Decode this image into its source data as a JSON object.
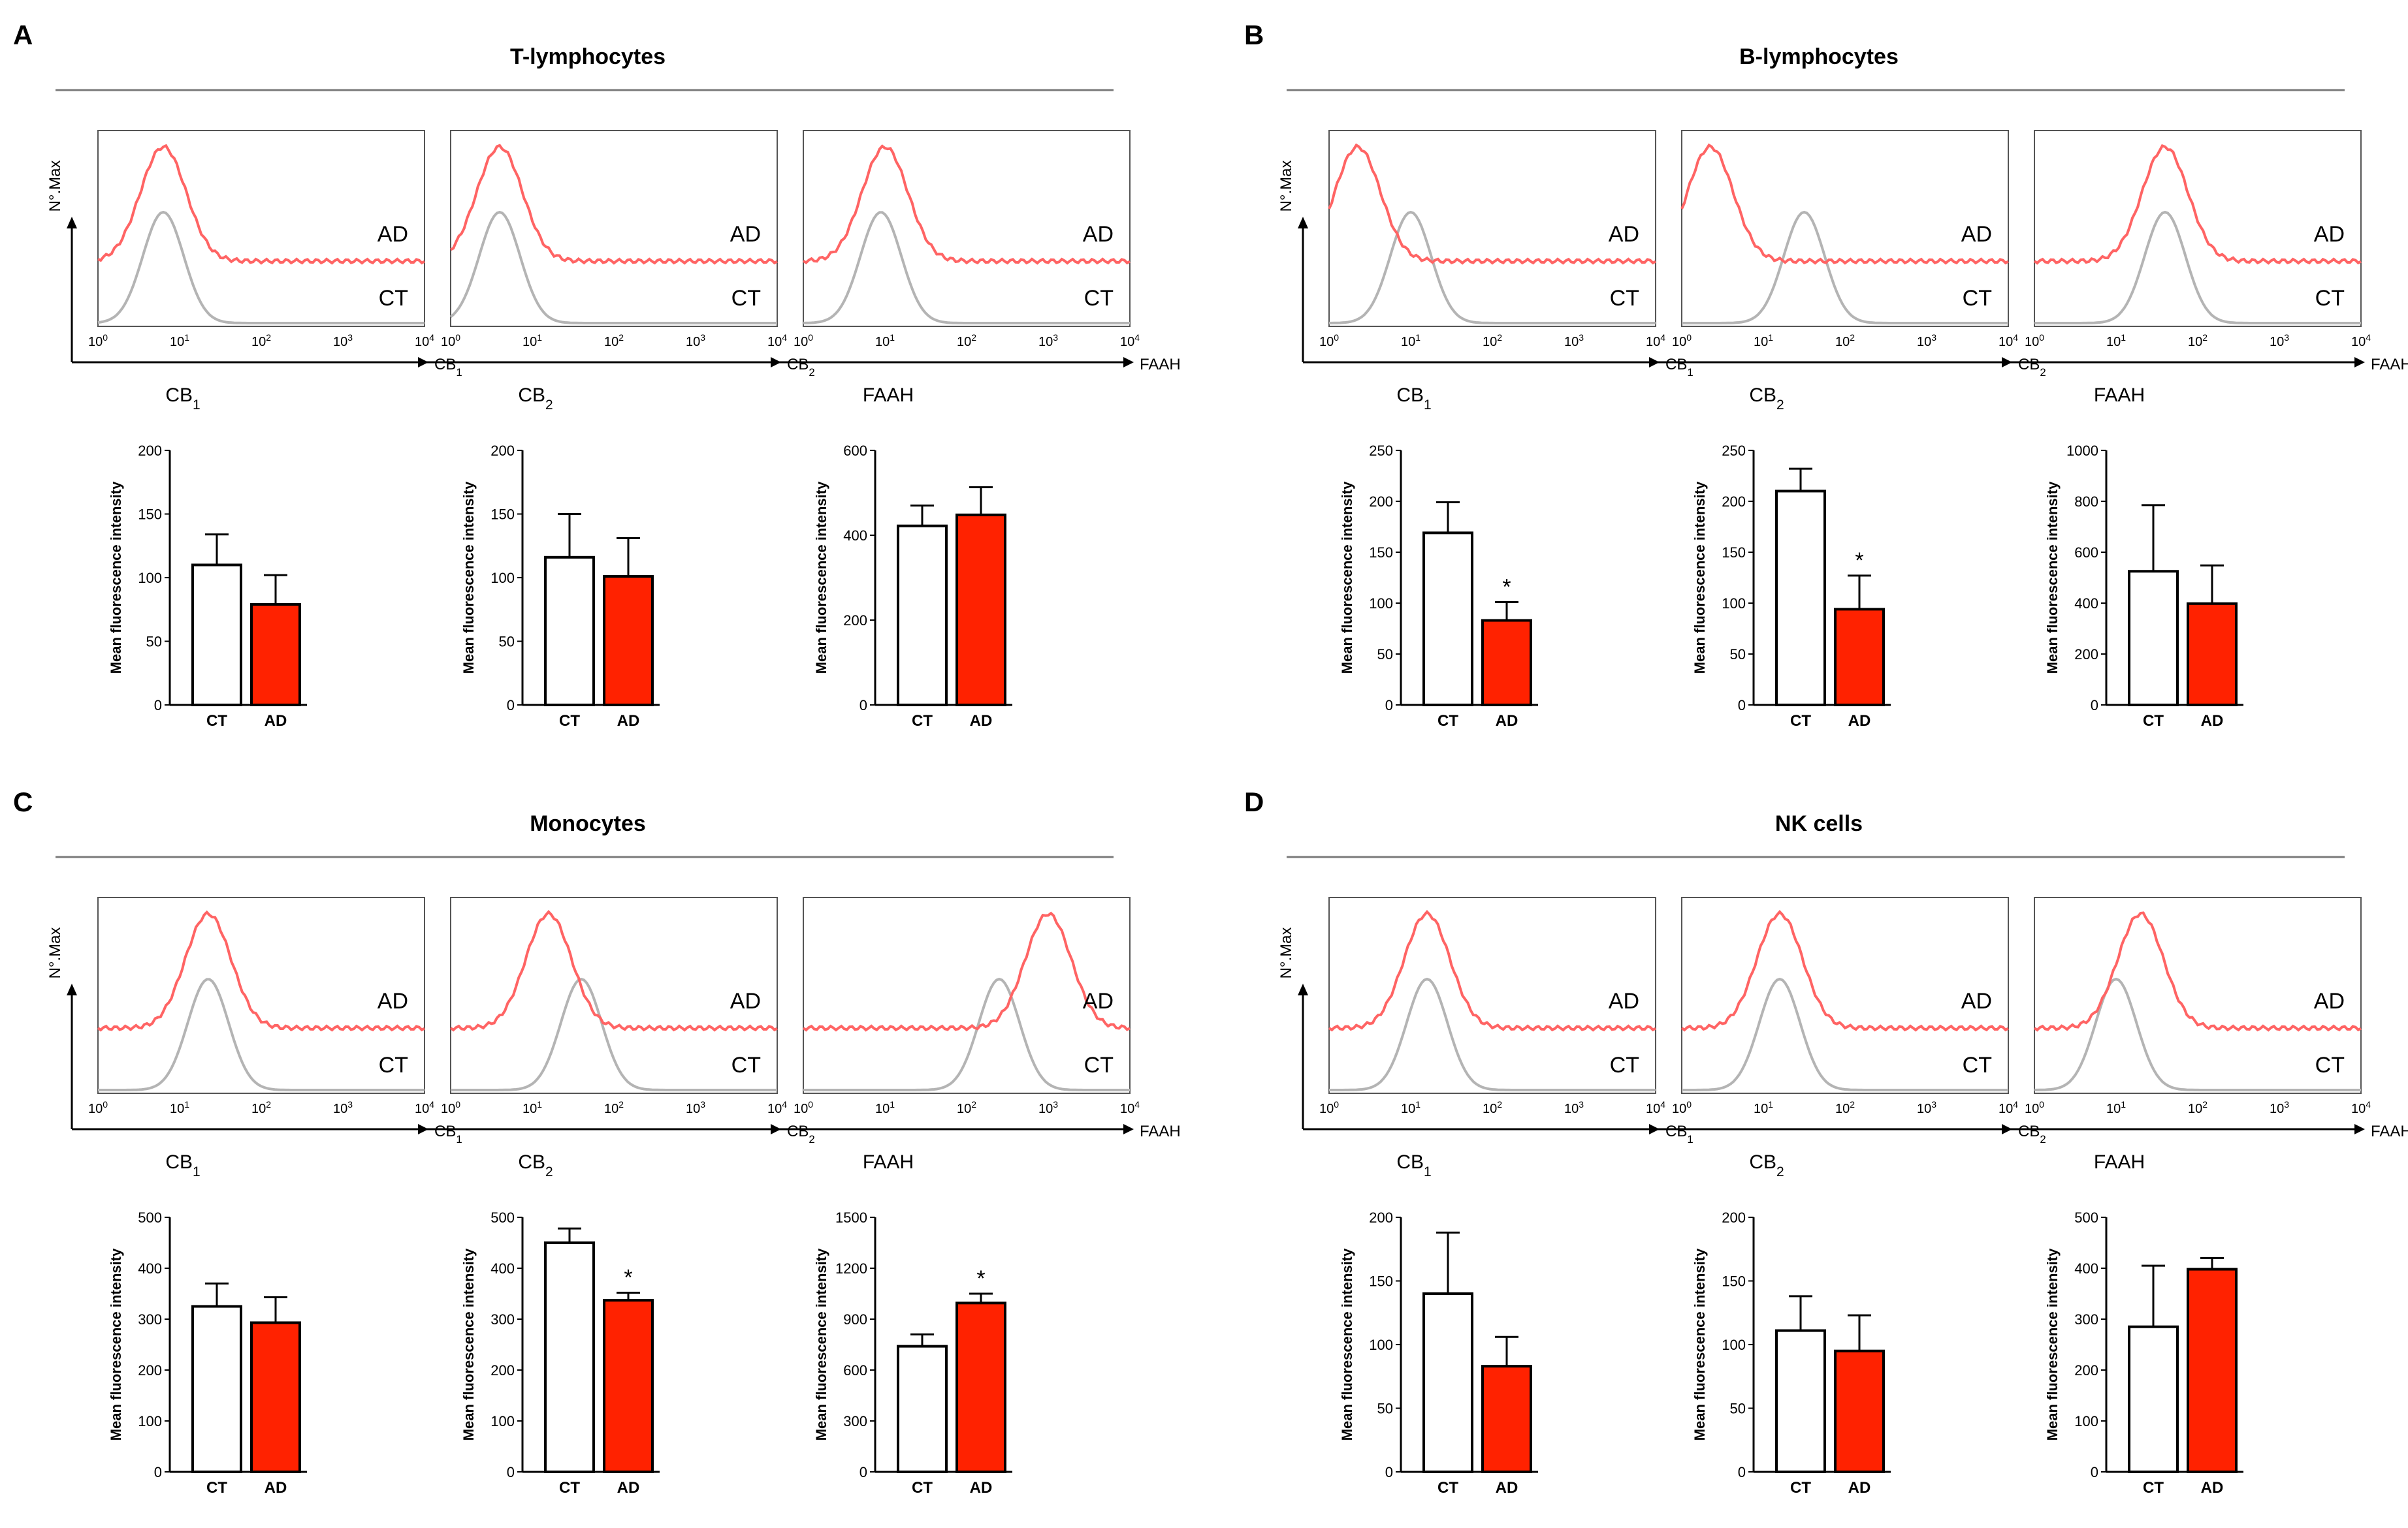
{
  "figure": {
    "colors": {
      "ad": "#ff2200",
      "ad_line": "#ff6464",
      "ct_line": "#b4b4b4",
      "ct_fill": "#ffffff",
      "rule": "#7a7a7a"
    },
    "hist_labels": {
      "ad": "AD",
      "ct": "CT"
    },
    "yaxis_hist_label": "N°.Max",
    "log_ticks": [
      "10",
      "10",
      "10",
      "10",
      "10"
    ],
    "log_exps": [
      "0",
      "1",
      "2",
      "3",
      "4"
    ],
    "bar_ylabel": "Mean fluorescence intensity",
    "categories": [
      "CT",
      "AD"
    ],
    "panels": [
      {
        "letter": "A",
        "title": "T-lymphocytes",
        "histograms": [
          {
            "channel": "CB",
            "sub": "1",
            "ad_peak": 0.8,
            "ct_peak": 0.8
          },
          {
            "channel": "CB",
            "sub": "2",
            "ad_peak": 0.6,
            "ct_peak": 0.6
          },
          {
            "channel": "FAAH",
            "sub": "",
            "ad_peak": 1.0,
            "ct_peak": 0.95
          }
        ],
        "bar_charts": [
          {
            "caption": "CB",
            "sub": "1",
            "ylim": [
              0,
              200
            ],
            "yticks": [
              0,
              50,
              100,
              150,
              200
            ],
            "ct": 110,
            "ct_err": 24,
            "ad": 79,
            "ad_err": 23,
            "sig": ""
          },
          {
            "caption": "CB",
            "sub": "2",
            "ylim": [
              0,
              200
            ],
            "yticks": [
              0,
              50,
              100,
              150,
              200
            ],
            "ct": 116,
            "ct_err": 34,
            "ad": 101,
            "ad_err": 30,
            "sig": ""
          },
          {
            "caption": "FAAH",
            "sub": "",
            "ylim": [
              0,
              600
            ],
            "yticks": [
              0,
              200,
              400,
              600
            ],
            "ct": 422,
            "ct_err": 48,
            "ad": 448,
            "ad_err": 65,
            "sig": ""
          }
        ]
      },
      {
        "letter": "B",
        "title": "B-lymphocytes",
        "histograms": [
          {
            "channel": "CB",
            "sub": "1",
            "ad_peak": 0.35,
            "ct_peak": 1.0
          },
          {
            "channel": "CB",
            "sub": "2",
            "ad_peak": 0.35,
            "ct_peak": 1.5
          },
          {
            "channel": "FAAH",
            "sub": "",
            "ad_peak": 1.6,
            "ct_peak": 1.6
          }
        ],
        "bar_charts": [
          {
            "caption": "CB",
            "sub": "1",
            "ylim": [
              0,
              250
            ],
            "yticks": [
              0,
              50,
              100,
              150,
              200,
              250
            ],
            "ct": 169,
            "ct_err": 30,
            "ad": 83,
            "ad_err": 18,
            "sig": "*"
          },
          {
            "caption": "CB",
            "sub": "2",
            "ylim": [
              0,
              250
            ],
            "yticks": [
              0,
              50,
              100,
              150,
              200,
              250
            ],
            "ct": 210,
            "ct_err": 22,
            "ad": 94,
            "ad_err": 33,
            "sig": "*"
          },
          {
            "caption": "FAAH",
            "sub": "",
            "ylim": [
              0,
              1000
            ],
            "yticks": [
              0,
              200,
              400,
              600,
              800,
              1000
            ],
            "ct": 525,
            "ct_err": 260,
            "ad": 398,
            "ad_err": 150,
            "sig": ""
          }
        ]
      },
      {
        "letter": "C",
        "title": "Monocytes",
        "histograms": [
          {
            "channel": "CB",
            "sub": "1",
            "ad_peak": 1.35,
            "ct_peak": 1.35
          },
          {
            "channel": "CB",
            "sub": "2",
            "ad_peak": 1.2,
            "ct_peak": 1.6
          },
          {
            "channel": "FAAH",
            "sub": "",
            "ad_peak": 3.0,
            "ct_peak": 2.4
          }
        ],
        "bar_charts": [
          {
            "caption": "CB",
            "sub": "1",
            "ylim": [
              0,
              500
            ],
            "yticks": [
              0,
              100,
              200,
              300,
              400,
              500
            ],
            "ct": 325,
            "ct_err": 45,
            "ad": 293,
            "ad_err": 50,
            "sig": ""
          },
          {
            "caption": "CB",
            "sub": "2",
            "ylim": [
              0,
              500
            ],
            "yticks": [
              0,
              100,
              200,
              300,
              400,
              500
            ],
            "ct": 450,
            "ct_err": 28,
            "ad": 337,
            "ad_err": 15,
            "sig": "*"
          },
          {
            "caption": "FAAH",
            "sub": "",
            "ylim": [
              0,
              1500
            ],
            "yticks": [
              0,
              300,
              600,
              900,
              1200,
              1500
            ],
            "ct": 740,
            "ct_err": 70,
            "ad": 995,
            "ad_err": 55,
            "sig": "*"
          }
        ]
      },
      {
        "letter": "D",
        "title": "NK cells",
        "histograms": [
          {
            "channel": "CB",
            "sub": "1",
            "ad_peak": 1.2,
            "ct_peak": 1.2
          },
          {
            "channel": "CB",
            "sub": "2",
            "ad_peak": 1.2,
            "ct_peak": 1.2
          },
          {
            "channel": "FAAH",
            "sub": "",
            "ad_peak": 1.3,
            "ct_peak": 1.0
          }
        ],
        "bar_charts": [
          {
            "caption": "CB",
            "sub": "1",
            "ylim": [
              0,
              200
            ],
            "yticks": [
              0,
              50,
              100,
              150,
              200
            ],
            "ct": 140,
            "ct_err": 48,
            "ad": 83,
            "ad_err": 23,
            "sig": ""
          },
          {
            "caption": "CB",
            "sub": "2",
            "ylim": [
              0,
              200
            ],
            "yticks": [
              0,
              50,
              100,
              150,
              200
            ],
            "ct": 111,
            "ct_err": 27,
            "ad": 95,
            "ad_err": 28,
            "sig": ""
          },
          {
            "caption": "FAAH",
            "sub": "",
            "ylim": [
              0,
              500
            ],
            "yticks": [
              0,
              100,
              200,
              300,
              400,
              500
            ],
            "ct": 285,
            "ct_err": 120,
            "ad": 398,
            "ad_err": 22,
            "sig": ""
          }
        ]
      }
    ]
  },
  "chart_data": [
    {
      "type": "bar",
      "title": "T-lymphocytes CB1",
      "categories": [
        "CT",
        "AD"
      ],
      "values": [
        110,
        79
      ],
      "errors": [
        24,
        23
      ],
      "ylabel": "Mean fluorescence intensity",
      "ylim": [
        0,
        200
      ],
      "significance": [
        "",
        ""
      ]
    },
    {
      "type": "bar",
      "title": "T-lymphocytes CB2",
      "categories": [
        "CT",
        "AD"
      ],
      "values": [
        116,
        101
      ],
      "errors": [
        34,
        30
      ],
      "ylabel": "Mean fluorescence intensity",
      "ylim": [
        0,
        200
      ],
      "significance": [
        "",
        ""
      ]
    },
    {
      "type": "bar",
      "title": "T-lymphocytes FAAH",
      "categories": [
        "CT",
        "AD"
      ],
      "values": [
        422,
        448
      ],
      "errors": [
        48,
        65
      ],
      "ylabel": "Mean fluorescence intensity",
      "ylim": [
        0,
        600
      ],
      "significance": [
        "",
        ""
      ]
    },
    {
      "type": "bar",
      "title": "B-lymphocytes CB1",
      "categories": [
        "CT",
        "AD"
      ],
      "values": [
        169,
        83
      ],
      "errors": [
        30,
        18
      ],
      "ylabel": "Mean fluorescence intensity",
      "ylim": [
        0,
        250
      ],
      "significance": [
        "",
        "*"
      ]
    },
    {
      "type": "bar",
      "title": "B-lymphocytes CB2",
      "categories": [
        "CT",
        "AD"
      ],
      "values": [
        210,
        94
      ],
      "errors": [
        22,
        33
      ],
      "ylabel": "Mean fluorescence intensity",
      "ylim": [
        0,
        250
      ],
      "significance": [
        "",
        "*"
      ]
    },
    {
      "type": "bar",
      "title": "B-lymphocytes FAAH",
      "categories": [
        "CT",
        "AD"
      ],
      "values": [
        525,
        398
      ],
      "errors": [
        260,
        150
      ],
      "ylabel": "Mean fluorescence intensity",
      "ylim": [
        0,
        1000
      ],
      "significance": [
        "",
        ""
      ]
    },
    {
      "type": "bar",
      "title": "Monocytes CB1",
      "categories": [
        "CT",
        "AD"
      ],
      "values": [
        325,
        293
      ],
      "errors": [
        45,
        50
      ],
      "ylabel": "Mean fluorescence intensity",
      "ylim": [
        0,
        500
      ],
      "significance": [
        "",
        ""
      ]
    },
    {
      "type": "bar",
      "title": "Monocytes CB2",
      "categories": [
        "CT",
        "AD"
      ],
      "values": [
        450,
        337
      ],
      "errors": [
        28,
        15
      ],
      "ylabel": "Mean fluorescence intensity",
      "ylim": [
        0,
        500
      ],
      "significance": [
        "",
        "*"
      ]
    },
    {
      "type": "bar",
      "title": "Monocytes FAAH",
      "categories": [
        "CT",
        "AD"
      ],
      "values": [
        740,
        995
      ],
      "errors": [
        70,
        55
      ],
      "ylabel": "Mean fluorescence intensity",
      "ylim": [
        0,
        1500
      ],
      "significance": [
        "",
        "*"
      ]
    },
    {
      "type": "bar",
      "title": "NK cells CB1",
      "categories": [
        "CT",
        "AD"
      ],
      "values": [
        140,
        83
      ],
      "errors": [
        48,
        23
      ],
      "ylabel": "Mean fluorescence intensity",
      "ylim": [
        0,
        200
      ],
      "significance": [
        "",
        ""
      ]
    },
    {
      "type": "bar",
      "title": "NK cells CB2",
      "categories": [
        "CT",
        "AD"
      ],
      "values": [
        111,
        95
      ],
      "errors": [
        27,
        28
      ],
      "ylabel": "Mean fluorescence intensity",
      "ylim": [
        0,
        200
      ],
      "significance": [
        "",
        ""
      ]
    },
    {
      "type": "bar",
      "title": "NK cells FAAH",
      "categories": [
        "CT",
        "AD"
      ],
      "values": [
        285,
        398
      ],
      "errors": [
        120,
        22
      ],
      "ylabel": "Mean fluorescence intensity",
      "ylim": [
        0,
        500
      ],
      "significance": [
        "",
        ""
      ]
    }
  ]
}
